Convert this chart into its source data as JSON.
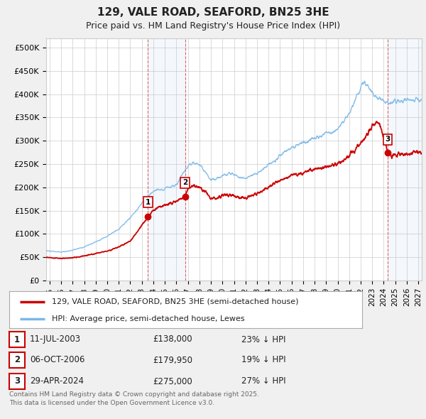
{
  "title": "129, VALE ROAD, SEAFORD, BN25 3HE",
  "subtitle": "Price paid vs. HM Land Registry's House Price Index (HPI)",
  "ylim": [
    0,
    520000
  ],
  "yticks": [
    0,
    50000,
    100000,
    150000,
    200000,
    250000,
    300000,
    350000,
    400000,
    450000,
    500000
  ],
  "ytick_labels": [
    "£0",
    "£50K",
    "£100K",
    "£150K",
    "£200K",
    "£250K",
    "£300K",
    "£350K",
    "£400K",
    "£450K",
    "£500K"
  ],
  "xlim_start": 1994.7,
  "xlim_end": 2027.3,
  "background_color": "#f0f0f0",
  "plot_bg_color": "#ffffff",
  "grid_color": "#cccccc",
  "hpi_color": "#7ab8e8",
  "price_color": "#cc0000",
  "sale1_date": 2003.53,
  "sale1_price": 138000,
  "sale2_date": 2006.76,
  "sale2_price": 179950,
  "sale3_date": 2024.33,
  "sale3_price": 275000,
  "legend_label_price": "129, VALE ROAD, SEAFORD, BN25 3HE (semi-detached house)",
  "legend_label_hpi": "HPI: Average price, semi-detached house, Lewes",
  "table_entries": [
    {
      "num": "1",
      "date": "11-JUL-2003",
      "price": "£138,000",
      "note": "23% ↓ HPI"
    },
    {
      "num": "2",
      "date": "06-OCT-2006",
      "price": "£179,950",
      "note": "19% ↓ HPI"
    },
    {
      "num": "3",
      "date": "29-APR-2024",
      "price": "£275,000",
      "note": "27% ↓ HPI"
    }
  ],
  "footer": "Contains HM Land Registry data © Crown copyright and database right 2025.\nThis data is licensed under the Open Government Licence v3.0."
}
